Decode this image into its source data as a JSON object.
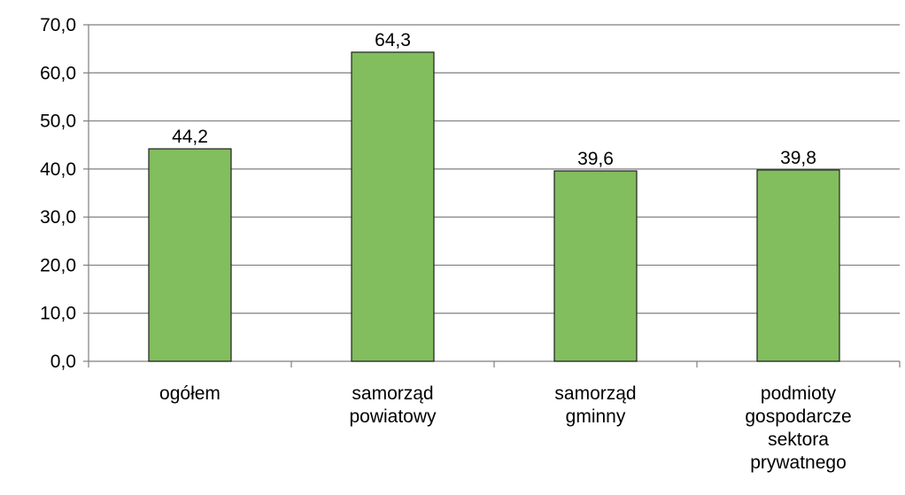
{
  "chart_data": {
    "type": "bar",
    "categories": [
      [
        "ogółem"
      ],
      [
        "samorząd",
        "powiatowy"
      ],
      [
        "samorząd",
        "gminny"
      ],
      [
        "podmioty",
        "gospodarcze",
        "sektora",
        "prywatnego"
      ]
    ],
    "values": [
      44.2,
      64.3,
      39.6,
      39.8
    ],
    "data_labels": [
      "44,2",
      "64,3",
      "39,6",
      "39,8"
    ],
    "yticks": [
      "0,0",
      "10,0",
      "20,0",
      "30,0",
      "40,0",
      "50,0",
      "60,0",
      "70,0"
    ],
    "ylim": [
      0,
      70
    ],
    "grid": true,
    "legend": false,
    "title": "",
    "xlabel": "",
    "ylabel": "",
    "colors": {
      "bar": "#82bd5e",
      "bar_border": "#1f1f1f",
      "grid": "#7f7f7f",
      "axis": "#7f7f7f"
    }
  }
}
